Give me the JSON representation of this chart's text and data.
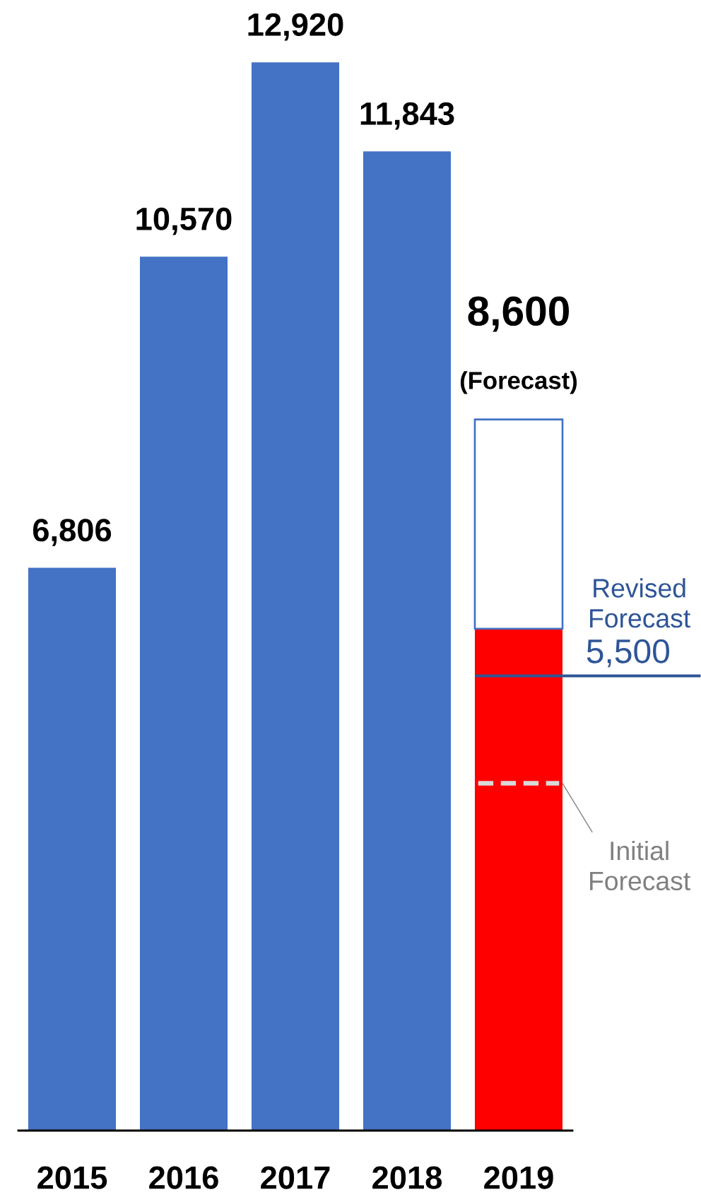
{
  "chart_data": {
    "type": "bar",
    "stacked": true,
    "categories": [
      "2015",
      "2016",
      "2017",
      "2018",
      "2019"
    ],
    "series": [
      {
        "colors": [
          "#4472c4",
          "#4472c4",
          "#4472c4",
          "#4472c4",
          "#ff0000"
        ],
        "values": [
          6806,
          10570,
          12920,
          11843,
          6070
        ],
        "value_labels": [
          "6,806",
          "10,570",
          "12,920",
          "11,843",
          null
        ]
      },
      {
        "color": "#ffffff",
        "values": [
          null,
          null,
          null,
          null,
          2530
        ]
      }
    ],
    "totals": [
      null,
      null,
      null,
      null,
      "8,600"
    ],
    "annotations": [
      {
        "text": "(Forecast)",
        "x": "2019",
        "y": 8600
      },
      {
        "text": "5,500",
        "x": "2019",
        "y": 5500
      }
    ],
    "ref_lines": [
      {
        "axis": "y",
        "value": 5500,
        "label": "Revised Forecast",
        "color": "#2f5597",
        "line_style": "solid"
      },
      {
        "axis": "y",
        "value": 4200,
        "label": "Initial Forecast",
        "color": "#d9d9d9",
        "line_style": "dashed"
      }
    ],
    "tick_labels": "x"
  }
}
